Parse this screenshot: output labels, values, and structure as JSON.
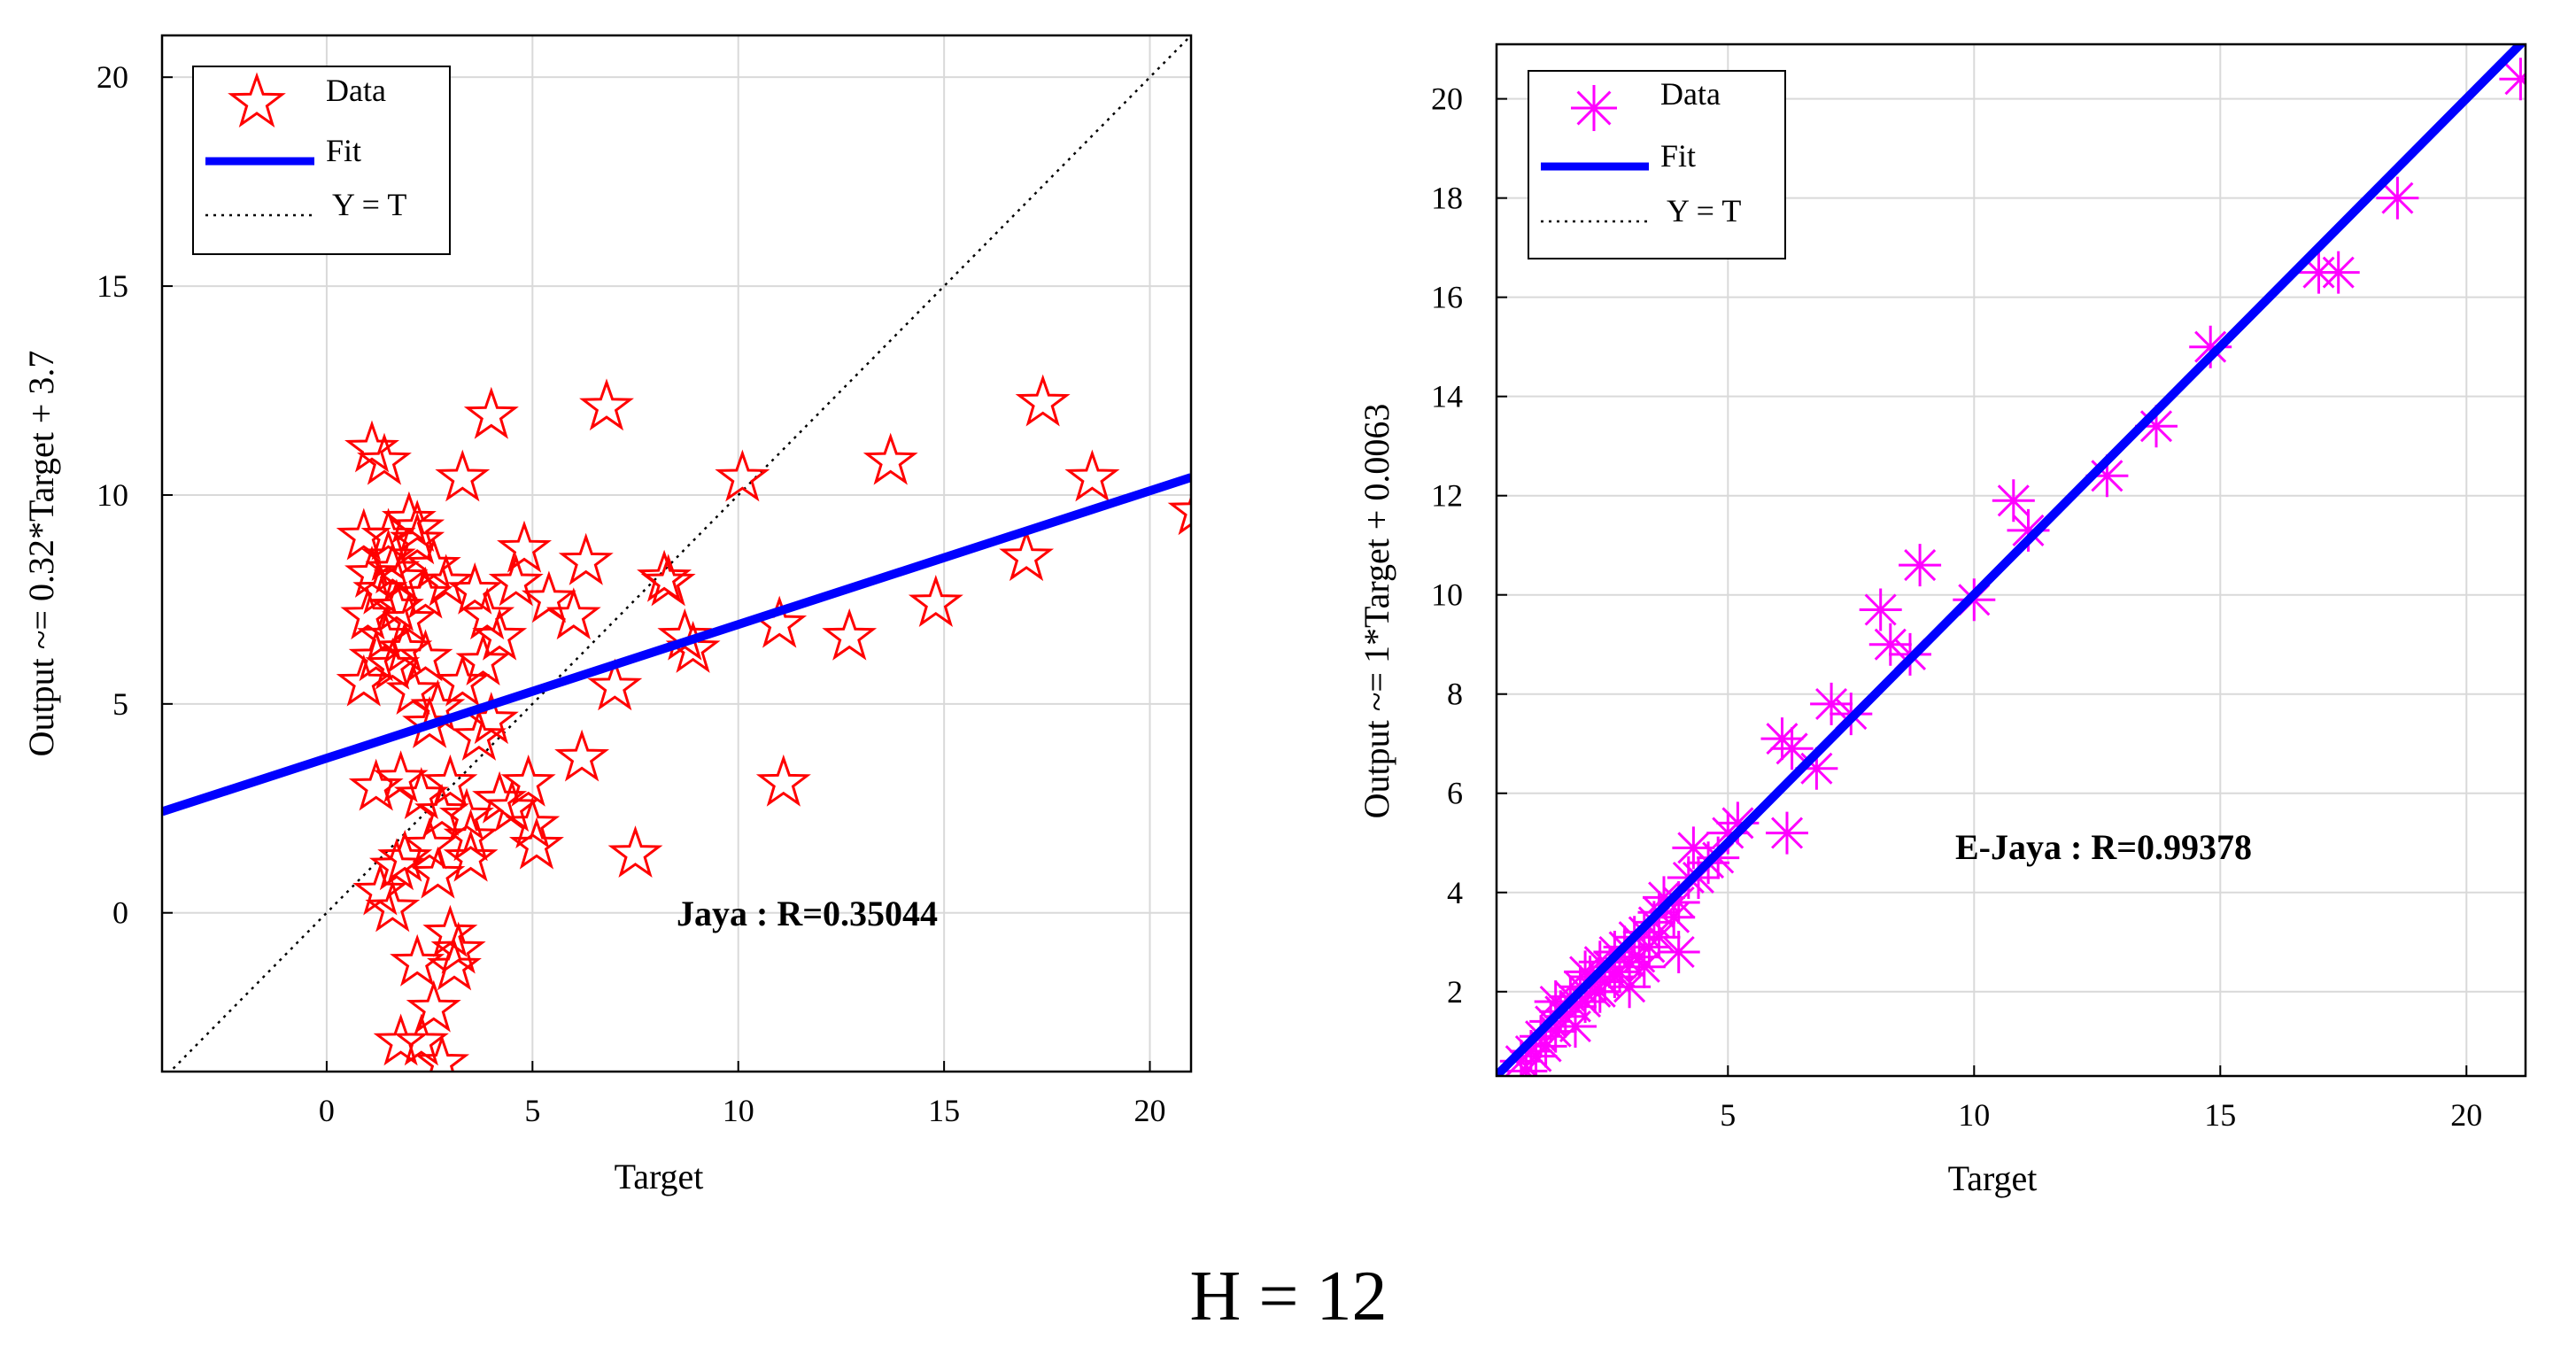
{
  "caption": "H = 12",
  "chart_data": [
    {
      "type": "scatter",
      "id": "jaya",
      "xlabel": "Target",
      "ylabel": "Output ~= 0.32*Target + 3.7",
      "xlim": [
        -4,
        21
      ],
      "ylim": [
        -3.8,
        21
      ],
      "xticks": [
        0,
        5,
        10,
        15,
        20
      ],
      "yticks": [
        0,
        5,
        10,
        15,
        20
      ],
      "grid": true,
      "legend_position": "top-left",
      "legend": [
        "Data",
        "Fit",
        "Y = T"
      ],
      "annotation": "Jaya : R=0.35044",
      "colors": {
        "data": "#ff0000",
        "fit": "#0000ff",
        "identity": "#000000"
      },
      "marker": "star",
      "fit": {
        "slope": 0.32,
        "intercept": 3.7
      },
      "points": [
        [
          21.1,
          9.6
        ],
        [
          18.6,
          10.4
        ],
        [
          17.4,
          12.2
        ],
        [
          17.0,
          8.5
        ],
        [
          14.8,
          7.4
        ],
        [
          13.7,
          10.8
        ],
        [
          12.7,
          6.6
        ],
        [
          11.0,
          6.9
        ],
        [
          11.1,
          3.1
        ],
        [
          10.1,
          10.4
        ],
        [
          8.9,
          6.3
        ],
        [
          8.7,
          6.6
        ],
        [
          8.3,
          7.9
        ],
        [
          8.2,
          8.0
        ],
        [
          7.5,
          1.4
        ],
        [
          7.0,
          5.4
        ],
        [
          6.8,
          12.1
        ],
        [
          6.3,
          8.4
        ],
        [
          6.2,
          3.7
        ],
        [
          6.0,
          7.1
        ],
        [
          5.4,
          7.5
        ],
        [
          5.1,
          1.6
        ],
        [
          5.0,
          2.1
        ],
        [
          4.9,
          3.1
        ],
        [
          4.8,
          8.7
        ],
        [
          4.6,
          7.9
        ],
        [
          4.5,
          2.5
        ],
        [
          4.2,
          2.7
        ],
        [
          4.2,
          6.6
        ],
        [
          4.0,
          4.6
        ],
        [
          4.0,
          11.9
        ],
        [
          3.9,
          7.1
        ],
        [
          3.7,
          4.2
        ],
        [
          3.6,
          7.7
        ],
        [
          3.5,
          1.3
        ],
        [
          3.5,
          1.8
        ],
        [
          3.4,
          2.3
        ],
        [
          3.3,
          5.5
        ],
        [
          3.3,
          10.4
        ],
        [
          3.2,
          -0.9
        ],
        [
          3.1,
          -1.3
        ],
        [
          3.0,
          -0.5
        ],
        [
          3.0,
          3.1
        ],
        [
          2.9,
          7.9
        ],
        [
          2.8,
          -3.6
        ],
        [
          2.8,
          2.4
        ],
        [
          2.7,
          0.9
        ],
        [
          2.7,
          4.9
        ],
        [
          2.6,
          8.3
        ],
        [
          2.6,
          -2.3
        ],
        [
          2.5,
          1.6
        ],
        [
          2.4,
          7.6
        ],
        [
          2.4,
          6.1
        ],
        [
          2.3,
          2.8
        ],
        [
          2.3,
          -3.1
        ],
        [
          2.2,
          8.9
        ],
        [
          2.2,
          -1.2
        ],
        [
          2.1,
          5.3
        ],
        [
          2.0,
          7.0
        ],
        [
          2.0,
          9.4
        ],
        [
          1.9,
          1.3
        ],
        [
          1.9,
          6.3
        ],
        [
          1.8,
          -3.1
        ],
        [
          1.8,
          8.0
        ],
        [
          1.7,
          1.1
        ],
        [
          1.7,
          7.3
        ],
        [
          1.6,
          0.1
        ],
        [
          1.6,
          5.9
        ],
        [
          1.5,
          8.5
        ],
        [
          1.5,
          9.0
        ],
        [
          1.4,
          6.6
        ],
        [
          1.4,
          10.8
        ],
        [
          1.3,
          0.5
        ],
        [
          1.3,
          7.7
        ],
        [
          1.2,
          3.0
        ],
        [
          1.2,
          6.1
        ],
        [
          1.1,
          11.1
        ],
        [
          1.1,
          8.1
        ],
        [
          1.0,
          7.1
        ],
        [
          0.9,
          5.5
        ],
        [
          0.9,
          9.0
        ],
        [
          1.8,
          3.2
        ],
        [
          2.5,
          4.5
        ],
        [
          3.8,
          6.0
        ],
        [
          2.2,
          9.2
        ],
        [
          1.6,
          8.2
        ]
      ]
    },
    {
      "type": "scatter",
      "id": "e-jaya",
      "xlabel": "Target",
      "ylabel": "Output ~= 1*Target + 0.0063",
      "xlim": [
        0.3,
        21.2
      ],
      "ylim": [
        0.3,
        21.1
      ],
      "xticks": [
        5,
        10,
        15,
        20
      ],
      "yticks": [
        2,
        4,
        6,
        8,
        10,
        12,
        14,
        16,
        18,
        20
      ],
      "grid": true,
      "legend_position": "top-left",
      "legend": [
        "Data",
        "Fit",
        "Y = T"
      ],
      "annotation": "E-Jaya : R=0.99378",
      "colors": {
        "data": "#ff00ff",
        "fit": "#0000ff",
        "identity": "#000000"
      },
      "marker": "asterisk",
      "fit": {
        "slope": 1.0,
        "intercept": 0.0063
      },
      "points": [
        [
          21.1,
          20.4
        ],
        [
          18.6,
          18.0
        ],
        [
          17.4,
          16.5
        ],
        [
          17.0,
          16.5
        ],
        [
          14.8,
          15.0
        ],
        [
          13.7,
          13.4
        ],
        [
          12.7,
          12.4
        ],
        [
          11.1,
          11.3
        ],
        [
          10.8,
          11.9
        ],
        [
          10.0,
          9.9
        ],
        [
          8.9,
          10.6
        ],
        [
          8.7,
          8.8
        ],
        [
          8.3,
          9.0
        ],
        [
          8.1,
          9.7
        ],
        [
          7.5,
          7.6
        ],
        [
          7.1,
          7.8
        ],
        [
          6.8,
          6.5
        ],
        [
          6.3,
          6.9
        ],
        [
          6.1,
          7.1
        ],
        [
          6.2,
          5.2
        ],
        [
          5.2,
          5.4
        ],
        [
          5.0,
          5.2
        ],
        [
          4.8,
          4.7
        ],
        [
          4.6,
          4.6
        ],
        [
          4.3,
          4.9
        ],
        [
          4.2,
          4.3
        ],
        [
          4.0,
          3.8
        ],
        [
          4.0,
          2.8
        ],
        [
          3.9,
          3.5
        ],
        [
          3.7,
          3.9
        ],
        [
          3.6,
          3.1
        ],
        [
          3.5,
          3.4
        ],
        [
          3.4,
          2.9
        ],
        [
          3.3,
          3.2
        ],
        [
          3.2,
          2.7
        ],
        [
          3.1,
          3.1
        ],
        [
          3.0,
          2.6
        ],
        [
          2.9,
          2.9
        ],
        [
          2.8,
          2.4
        ],
        [
          2.7,
          2.8
        ],
        [
          2.6,
          2.5
        ],
        [
          2.5,
          2.2
        ],
        [
          2.4,
          2.6
        ],
        [
          2.3,
          2.0
        ],
        [
          2.2,
          2.3
        ],
        [
          2.1,
          1.8
        ],
        [
          2.0,
          2.1
        ],
        [
          1.9,
          1.7
        ],
        [
          1.8,
          1.9
        ],
        [
          1.7,
          1.5
        ],
        [
          1.6,
          1.6
        ],
        [
          1.5,
          1.2
        ],
        [
          1.4,
          1.4
        ],
        [
          1.3,
          0.9
        ],
        [
          1.2,
          1.1
        ],
        [
          1.1,
          0.7
        ],
        [
          1.0,
          0.8
        ],
        [
          0.9,
          0.4
        ],
        [
          0.8,
          0.6
        ],
        [
          1.9,
          1.3
        ],
        [
          2.4,
          2.0
        ],
        [
          3.0,
          2.1
        ],
        [
          3.6,
          3.6
        ],
        [
          4.4,
          4.3
        ],
        [
          2.1,
          2.4
        ],
        [
          1.5,
          1.8
        ],
        [
          2.7,
          2.3
        ],
        [
          3.3,
          2.5
        ]
      ]
    }
  ]
}
